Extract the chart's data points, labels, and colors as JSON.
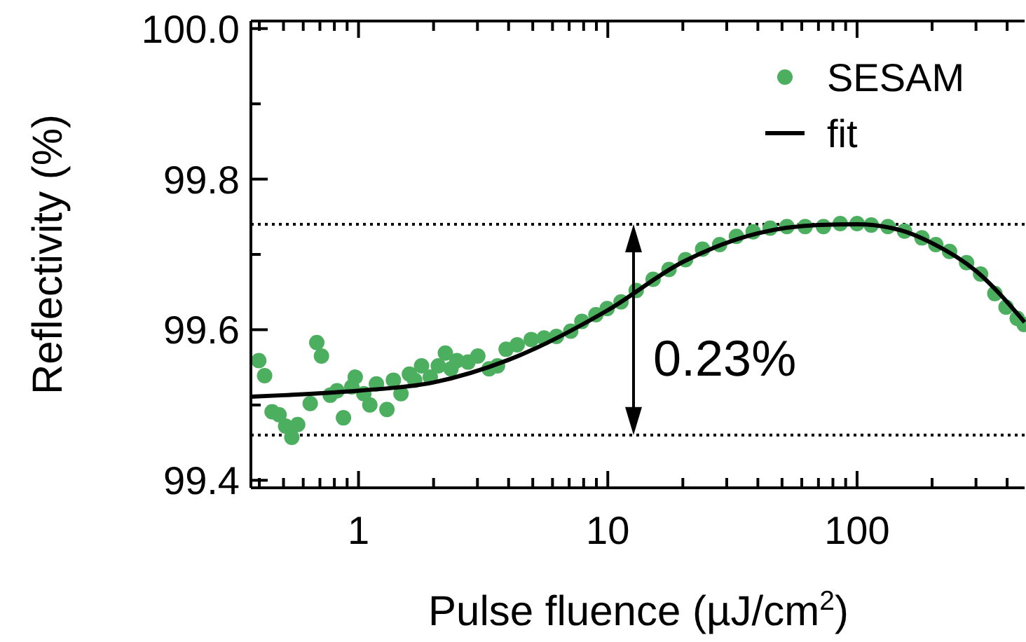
{
  "chart_data": {
    "type": "scatter",
    "xlabel": "Pulse fluence (µJ/cm$^{2}$)",
    "ylabel": "Reflectivity (%)",
    "log": "x",
    "xlim": [
      0.37,
      470
    ],
    "ylim": [
      99.39,
      100.01
    ],
    "xticks": [
      {
        "value": 0.4,
        "label": null
      },
      {
        "value": 0.5,
        "label": null
      },
      {
        "value": 0.6,
        "label": null
      },
      {
        "value": 0.7,
        "label": null
      },
      {
        "value": 0.8,
        "label": null
      },
      {
        "value": 0.9,
        "label": null
      },
      1,
      {
        "value": 2,
        "label": null
      },
      {
        "value": 3,
        "label": null
      },
      {
        "value": 4,
        "label": null
      },
      {
        "value": 5,
        "label": null
      },
      {
        "value": 6,
        "label": null
      },
      {
        "value": 7,
        "label": null
      },
      {
        "value": 8,
        "label": null
      },
      {
        "value": 9,
        "label": null
      },
      10,
      {
        "value": 20,
        "label": null
      },
      {
        "value": 30,
        "label": null
      },
      {
        "value": 40,
        "label": null
      },
      {
        "value": 50,
        "label": null
      },
      {
        "value": 60,
        "label": null
      },
      {
        "value": 70,
        "label": null
      },
      {
        "value": 80,
        "label": null
      },
      {
        "value": 90,
        "label": null
      },
      100,
      {
        "value": 200,
        "label": null
      },
      {
        "value": 300,
        "label": null
      },
      {
        "value": 400,
        "label": null
      }
    ],
    "yticks": [
      99.4,
      {
        "value": 99.5,
        "label": null
      },
      99.6,
      {
        "value": 99.7,
        "label": null
      },
      99.8,
      {
        "value": 99.9,
        "label": null
      },
      {
        "value": 100,
        "label": "100.0"
      }
    ],
    "grid": false,
    "legend": "top right",
    "series": [
      {
        "name": "SESAM",
        "marker": "circle",
        "color": "#4caf5f",
        "x": [
          0.398,
          0.42,
          0.45,
          0.48,
          0.51,
          0.54,
          0.57,
          0.64,
          0.68,
          0.71,
          0.77,
          0.82,
          0.87,
          0.94,
          0.97,
          1.05,
          1.11,
          1.18,
          1.3,
          1.38,
          1.48,
          1.6,
          1.68,
          1.79,
          1.94,
          2.09,
          2.23,
          2.35,
          2.48,
          2.75,
          3.01,
          3.34,
          3.61,
          3.91,
          4.33,
          4.93,
          5.55,
          6.22,
          7.1,
          7.87,
          8.96,
          9.94,
          11.3,
          13,
          15.2,
          17.6,
          20.5,
          24,
          28.1,
          32.8,
          38.3,
          44.8,
          52.3,
          61.9,
          73.3,
          85.6,
          100,
          114,
          133,
          155,
          182,
          207,
          235,
          275,
          313,
          357,
          396,
          439,
          468
        ],
        "values": [
          99.559,
          99.539,
          99.491,
          99.487,
          99.472,
          99.457,
          99.474,
          99.502,
          99.583,
          99.565,
          99.513,
          99.519,
          99.483,
          99.524,
          99.537,
          99.515,
          99.5,
          99.528,
          99.494,
          99.533,
          99.515,
          99.541,
          99.533,
          99.552,
          99.537,
          99.552,
          99.569,
          99.548,
          99.559,
          99.557,
          99.565,
          99.548,
          99.552,
          99.574,
          99.58,
          99.587,
          99.589,
          99.591,
          99.598,
          99.611,
          99.62,
          99.628,
          99.637,
          99.652,
          99.667,
          99.68,
          99.693,
          99.707,
          99.713,
          99.724,
          99.73,
          99.735,
          99.737,
          99.737,
          99.737,
          99.741,
          99.741,
          99.739,
          99.737,
          99.731,
          99.722,
          99.713,
          99.704,
          99.689,
          99.674,
          99.648,
          99.63,
          99.615,
          99.607
        ]
      },
      {
        "name": "fit",
        "type": "line",
        "marker": "none",
        "line_style": "solid",
        "color": "#000000",
        "x": [
          0.37,
          0.5,
          1,
          2,
          4,
          10,
          20,
          40,
          70,
          100,
          150,
          200,
          300,
          470
        ],
        "values": [
          99.511,
          99.513,
          99.519,
          99.53,
          99.56,
          99.626,
          99.69,
          99.728,
          99.739,
          99.74,
          99.732,
          99.715,
          99.678,
          99.61
        ]
      }
    ],
    "ref_lines": [
      {
        "axis": "y",
        "value": 99.74,
        "color": "#000000",
        "line_style": "dotted"
      },
      {
        "axis": "y",
        "value": 99.46,
        "color": "#000000",
        "line_style": "dotted"
      }
    ],
    "annotations": [
      "0.23%"
    ]
  }
}
